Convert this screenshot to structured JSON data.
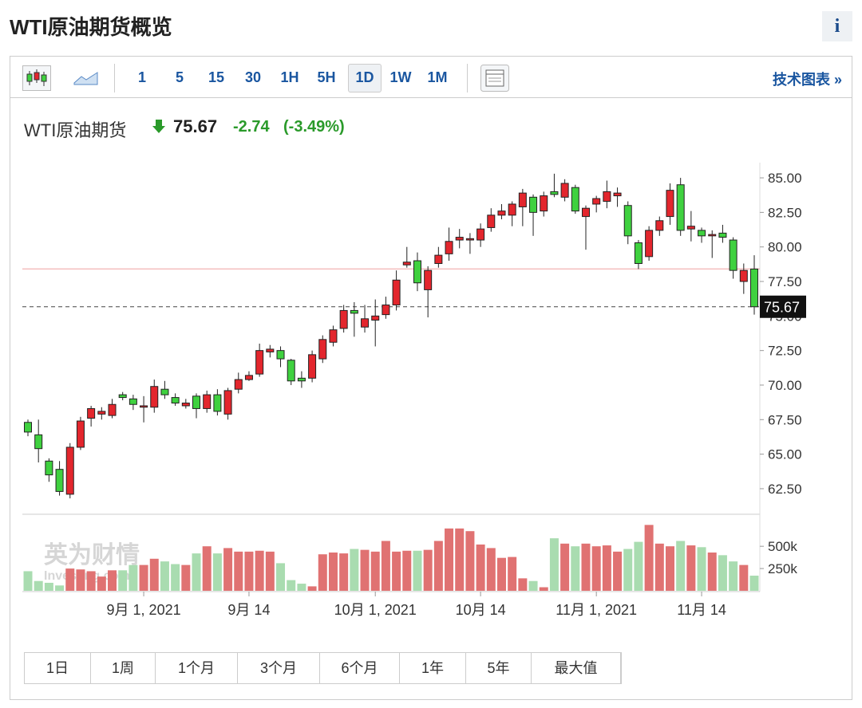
{
  "header": {
    "title": "WTI原油期货概览",
    "info": "i"
  },
  "toolbar": {
    "intervals": [
      "1",
      "5",
      "15",
      "30",
      "1H",
      "5H",
      "1D",
      "1W",
      "1M"
    ],
    "active_interval": "1D",
    "link": "技术图表 »"
  },
  "quote": {
    "name": "WTI原油期货",
    "price": "75.67",
    "change": "-2.74",
    "change_percent": "(-3.49%)"
  },
  "chart_data": {
    "type": "candlestick",
    "categories": [
      null,
      null,
      null,
      null,
      null,
      null,
      null,
      null,
      null,
      null,
      null,
      "9月 1, 2021",
      null,
      null,
      null,
      null,
      null,
      null,
      null,
      null,
      null,
      "9月 14",
      null,
      null,
      null,
      null,
      null,
      null,
      null,
      null,
      null,
      null,
      null,
      "10月 1, 2021",
      null,
      null,
      null,
      null,
      null,
      null,
      null,
      null,
      null,
      "10月 14",
      null,
      null,
      null,
      null,
      null,
      null,
      null,
      null,
      null,
      null,
      "11月 1, 2021",
      null,
      null,
      null,
      null,
      null,
      null,
      null,
      null,
      null,
      "11月 14",
      null,
      null,
      null,
      null,
      null
    ],
    "open": [
      67.3,
      66.4,
      64.5,
      63.9,
      62.1,
      65.5,
      67.6,
      67.9,
      67.8,
      69.3,
      69.0,
      68.4,
      68.4,
      69.7,
      69.1,
      68.5,
      69.2,
      68.3,
      69.3,
      67.9,
      69.7,
      70.4,
      70.8,
      72.4,
      72.5,
      71.8,
      70.5,
      70.5,
      71.9,
      73.1,
      74.1,
      75.4,
      74.2,
      74.7,
      75.1,
      75.8,
      78.7,
      79.0,
      76.9,
      78.8,
      79.5,
      80.5,
      80.5,
      80.5,
      81.4,
      82.3,
      82.3,
      82.9,
      83.6,
      82.6,
      84.0,
      83.6,
      84.3,
      82.2,
      83.1,
      83.3,
      83.7,
      83.0,
      80.3,
      79.3,
      81.2,
      82.2,
      84.5,
      81.3,
      81.2,
      80.8,
      81.0,
      80.5,
      77.5,
      78.4
    ],
    "high": [
      67.5,
      67.5,
      64.7,
      64.5,
      65.8,
      67.7,
      68.5,
      68.4,
      69.0,
      69.5,
      69.3,
      69.2,
      70.4,
      70.3,
      69.4,
      69.0,
      69.4,
      69.6,
      69.7,
      69.8,
      70.9,
      71.0,
      73.0,
      72.9,
      72.8,
      71.9,
      71.0,
      72.5,
      73.6,
      74.3,
      75.8,
      76.0,
      75.8,
      76.2,
      76.4,
      78.3,
      80.0,
      79.6,
      78.6,
      80.0,
      81.4,
      81.3,
      81.0,
      81.7,
      82.8,
      83.1,
      83.3,
      84.2,
      83.8,
      84.0,
      85.3,
      84.9,
      84.5,
      83.0,
      83.7,
      84.8,
      84.3,
      83.3,
      80.5,
      81.5,
      82.2,
      84.6,
      85.0,
      82.6,
      81.4,
      81.2,
      81.6,
      80.7,
      78.8,
      79.4
    ],
    "low": [
      66.3,
      64.4,
      63.0,
      62.0,
      61.8,
      65.3,
      67.0,
      67.5,
      67.6,
      68.9,
      68.2,
      67.3,
      68.0,
      69.0,
      68.5,
      68.3,
      67.6,
      68.0,
      67.8,
      67.5,
      69.4,
      70.3,
      70.6,
      72.0,
      71.3,
      70.0,
      69.8,
      70.2,
      71.6,
      72.8,
      73.8,
      73.5,
      73.8,
      72.8,
      74.8,
      75.4,
      78.5,
      76.8,
      74.9,
      78.5,
      79.0,
      79.9,
      79.5,
      80.0,
      81.1,
      82.0,
      81.5,
      81.5,
      80.8,
      82.2,
      83.6,
      83.3,
      82.4,
      79.8,
      82.5,
      82.8,
      82.9,
      80.2,
      78.4,
      79.0,
      80.8,
      81.6,
      80.8,
      80.4,
      80.3,
      79.2,
      80.3,
      77.7,
      76.6,
      75.1
    ],
    "close": [
      66.6,
      65.4,
      63.5,
      62.3,
      65.5,
      67.4,
      68.3,
      68.1,
      68.6,
      69.1,
      68.6,
      68.5,
      69.9,
      69.3,
      68.7,
      68.7,
      68.3,
      69.3,
      68.1,
      69.6,
      70.4,
      70.7,
      72.5,
      72.6,
      71.9,
      70.3,
      70.3,
      72.2,
      73.3,
      74.0,
      75.4,
      75.2,
      74.8,
      75.0,
      75.8,
      77.6,
      78.9,
      77.4,
      78.3,
      79.4,
      80.4,
      80.7,
      80.6,
      81.3,
      82.3,
      82.6,
      83.1,
      83.9,
      82.5,
      83.7,
      83.8,
      84.6,
      82.6,
      82.8,
      83.5,
      84.0,
      83.9,
      80.8,
      78.8,
      81.2,
      81.9,
      84.1,
      81.2,
      81.5,
      80.8,
      80.9,
      80.7,
      78.3,
      78.3,
      75.67
    ],
    "volume": [
      220000,
      110000,
      90000,
      60000,
      250000,
      240000,
      220000,
      160000,
      230000,
      230000,
      290000,
      290000,
      360000,
      330000,
      300000,
      290000,
      420000,
      500000,
      420000,
      480000,
      440000,
      440000,
      450000,
      440000,
      310000,
      120000,
      80000,
      50000,
      410000,
      430000,
      420000,
      470000,
      460000,
      440000,
      560000,
      440000,
      450000,
      450000,
      460000,
      560000,
      700000,
      700000,
      670000,
      520000,
      480000,
      370000,
      380000,
      140000,
      110000,
      40000,
      590000,
      530000,
      500000,
      530000,
      500000,
      510000,
      440000,
      470000,
      550000,
      740000,
      530000,
      500000,
      560000,
      510000,
      490000,
      430000,
      400000,
      330000,
      290000,
      170000
    ],
    "up_color": "#e3262d",
    "down_color": "#3fd13f",
    "up_volume_color": "#e07272",
    "down_volume_color": "#a9dcb0",
    "ylim": [
      60.65,
      86.1
    ],
    "yticks": [
      {
        "value": 62.5,
        "label": "62.50"
      },
      {
        "value": 65,
        "label": "65.00"
      },
      {
        "value": 67.5,
        "label": "67.50"
      },
      {
        "value": 70,
        "label": "70.00"
      },
      {
        "value": 72.5,
        "label": "72.50"
      },
      {
        "value": 75,
        "label": "75.00"
      },
      {
        "value": 77.5,
        "label": "77.50"
      },
      {
        "value": 80,
        "label": "80.00"
      },
      {
        "value": 82.5,
        "label": "82.50"
      },
      {
        "value": 85,
        "label": "85.00"
      }
    ],
    "y2lim": [
      0,
      815000
    ],
    "y2ticks": [
      {
        "value": 250000,
        "label": "250k"
      },
      {
        "value": 500000,
        "label": "500k"
      }
    ],
    "previous_close": 78.41,
    "last_price": {
      "value": 75.67,
      "label": "75.67"
    },
    "watermark": [
      "英为财情",
      "Investing.com"
    ]
  },
  "ranges": [
    "1日",
    "1周",
    "1个月",
    "3个月",
    "6个月",
    "1年",
    "5年",
    "最大值"
  ]
}
